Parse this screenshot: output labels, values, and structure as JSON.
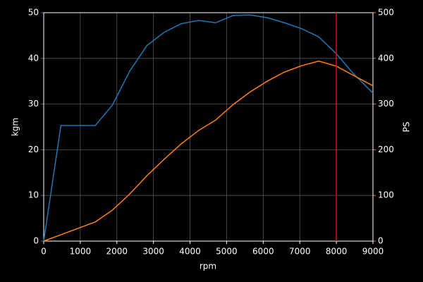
{
  "chart_data": {
    "type": "line",
    "x_label": "rpm",
    "y_label": "kgm",
    "y2_label": "PS",
    "x": [
      0,
      470,
      1410,
      1880,
      2350,
      2820,
      3290,
      3760,
      4230,
      4700,
      5180,
      5650,
      6110,
      6580,
      7050,
      7520,
      8000,
      8460,
      9000
    ],
    "series": [
      {
        "name": "kgm",
        "color": "#1f77b4",
        "axis": "y",
        "values": [
          0,
          25.3,
          25.3,
          29.8,
          37.2,
          42.8,
          45.7,
          47.6,
          48.3,
          47.8,
          49.4,
          49.5,
          48.9,
          47.8,
          46.5,
          44.7,
          41.0,
          36.7,
          32.4
        ]
      },
      {
        "name": "PS",
        "color": "#ff7f0e",
        "axis": "y2",
        "values": [
          0,
          14,
          42,
          68,
          103,
          143,
          179,
          213,
          242,
          265,
          299,
          327,
          350,
          370,
          384,
          394,
          383,
          363,
          340
        ]
      }
    ],
    "vline": {
      "x": 8000,
      "color": "#e8000b"
    },
    "xlim": [
      0,
      9000
    ],
    "xticks": [
      0,
      1000,
      2000,
      3000,
      4000,
      5000,
      6000,
      7000,
      8000,
      9000
    ],
    "ylim": [
      0,
      50
    ],
    "yticks": [
      0,
      10,
      20,
      30,
      40,
      50
    ],
    "y2lim": [
      0,
      500
    ],
    "y2ticks": [
      0,
      100,
      200,
      300,
      400,
      500
    ],
    "grid": true
  }
}
